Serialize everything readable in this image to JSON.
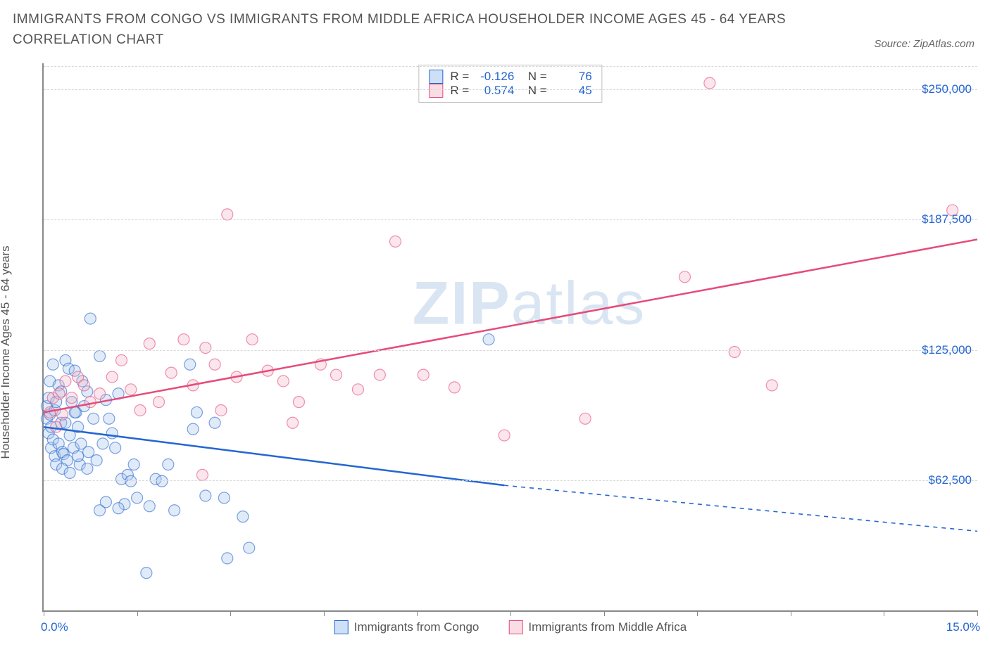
{
  "title": "IMMIGRANTS FROM CONGO VS IMMIGRANTS FROM MIDDLE AFRICA HOUSEHOLDER INCOME AGES 45 - 64 YEARS CORRELATION CHART",
  "source": "Source: ZipAtlas.com",
  "ylabel": "Householder Income Ages 45 - 64 years",
  "watermark_a": "ZIP",
  "watermark_b": "atlas",
  "chart": {
    "type": "scatter",
    "xlim": [
      0,
      15
    ],
    "ylim": [
      0,
      262500
    ],
    "xaxis_min_label": "0.0%",
    "xaxis_max_label": "15.0%",
    "xtick_positions": [
      0,
      1.5,
      3.0,
      4.5,
      6.0,
      7.5,
      9.0,
      10.5,
      12.0,
      13.5,
      15.0
    ],
    "ytick_positions": [
      62500,
      125000,
      187500,
      250000
    ],
    "ytick_labels": [
      "$62,500",
      "$125,000",
      "$187,500",
      "$250,000"
    ],
    "grid_color": "#d8d8d8",
    "background_color": "#ffffff",
    "marker_radius": 8,
    "marker_opacity": 0.35,
    "line_width": 2.5,
    "series": [
      {
        "name": "Immigrants from Congo",
        "color_fill": "#a8c6ec",
        "color_stroke": "#2466d1",
        "swatch_fill": "#cde0f7",
        "swatch_border": "#2466d1",
        "R": "-0.126",
        "N": "76",
        "regression": {
          "x1": 0,
          "y1": 88000,
          "x2": 7.4,
          "y2": 60000,
          "dash_to_x": 15,
          "dash_to_y": 38000
        },
        "points": [
          [
            0.05,
            98000
          ],
          [
            0.05,
            92000
          ],
          [
            0.08,
            102000
          ],
          [
            0.08,
            85000
          ],
          [
            0.1,
            110000
          ],
          [
            0.1,
            94000
          ],
          [
            0.12,
            88000
          ],
          [
            0.12,
            78000
          ],
          [
            0.15,
            118000
          ],
          [
            0.15,
            82000
          ],
          [
            0.18,
            96000
          ],
          [
            0.18,
            74000
          ],
          [
            0.2,
            100000
          ],
          [
            0.2,
            70000
          ],
          [
            0.24,
            108000
          ],
          [
            0.24,
            80000
          ],
          [
            0.28,
            105000
          ],
          [
            0.28,
            90000
          ],
          [
            0.3,
            76000
          ],
          [
            0.32,
            75000
          ],
          [
            0.35,
            120000
          ],
          [
            0.35,
            90000
          ],
          [
            0.38,
            72000
          ],
          [
            0.4,
            116000
          ],
          [
            0.42,
            84000
          ],
          [
            0.45,
            100000
          ],
          [
            0.48,
            78000
          ],
          [
            0.5,
            115000
          ],
          [
            0.52,
            95000
          ],
          [
            0.55,
            88000
          ],
          [
            0.58,
            70000
          ],
          [
            0.62,
            110000
          ],
          [
            0.65,
            98000
          ],
          [
            0.7,
            105000
          ],
          [
            0.72,
            76000
          ],
          [
            0.75,
            140000
          ],
          [
            0.8,
            92000
          ],
          [
            0.85,
            72000
          ],
          [
            0.9,
            122000
          ],
          [
            0.95,
            80000
          ],
          [
            1.0,
            101000
          ],
          [
            1.05,
            92000
          ],
          [
            1.1,
            85000
          ],
          [
            1.15,
            78000
          ],
          [
            1.2,
            104000
          ],
          [
            1.25,
            63000
          ],
          [
            1.3,
            51000
          ],
          [
            1.35,
            65000
          ],
          [
            1.4,
            62000
          ],
          [
            1.45,
            70000
          ],
          [
            1.5,
            54000
          ],
          [
            1.65,
            18000
          ],
          [
            1.7,
            50000
          ],
          [
            1.8,
            63000
          ],
          [
            1.9,
            62000
          ],
          [
            2.0,
            70000
          ],
          [
            2.1,
            48000
          ],
          [
            2.35,
            118000
          ],
          [
            2.4,
            87000
          ],
          [
            2.46,
            95000
          ],
          [
            2.6,
            55000
          ],
          [
            2.75,
            90000
          ],
          [
            2.9,
            54000
          ],
          [
            2.95,
            25000
          ],
          [
            3.2,
            45000
          ],
          [
            3.3,
            30000
          ],
          [
            7.15,
            130000
          ],
          [
            0.3,
            68000
          ],
          [
            0.42,
            66000
          ],
          [
            0.55,
            74000
          ],
          [
            0.6,
            80000
          ],
          [
            0.7,
            68000
          ],
          [
            0.9,
            48000
          ],
          [
            1.0,
            52000
          ],
          [
            1.2,
            49000
          ],
          [
            0.5,
            95000
          ]
        ]
      },
      {
        "name": "Immigrants from Middle Africa",
        "color_fill": "#f2b6c8",
        "color_stroke": "#e54b7a",
        "swatch_fill": "#fadce5",
        "swatch_border": "#e54b7a",
        "R": "0.574",
        "N": "45",
        "regression": {
          "x1": 0,
          "y1": 95000,
          "x2": 15,
          "y2": 178000
        },
        "points": [
          [
            0.1,
            95000
          ],
          [
            0.15,
            102000
          ],
          [
            0.2,
            88000
          ],
          [
            0.25,
            104000
          ],
          [
            0.3,
            94000
          ],
          [
            0.35,
            110000
          ],
          [
            0.45,
            102000
          ],
          [
            0.55,
            112000
          ],
          [
            0.65,
            108000
          ],
          [
            0.75,
            100000
          ],
          [
            0.9,
            104000
          ],
          [
            1.1,
            112000
          ],
          [
            1.25,
            120000
          ],
          [
            1.4,
            106000
          ],
          [
            1.55,
            96000
          ],
          [
            1.7,
            128000
          ],
          [
            1.85,
            100000
          ],
          [
            2.05,
            114000
          ],
          [
            2.25,
            130000
          ],
          [
            2.4,
            108000
          ],
          [
            2.6,
            126000
          ],
          [
            2.75,
            118000
          ],
          [
            2.85,
            96000
          ],
          [
            2.95,
            190000
          ],
          [
            3.1,
            112000
          ],
          [
            3.35,
            130000
          ],
          [
            3.6,
            115000
          ],
          [
            3.85,
            110000
          ],
          [
            4.1,
            100000
          ],
          [
            4.45,
            118000
          ],
          [
            4.7,
            113000
          ],
          [
            5.05,
            106000
          ],
          [
            5.4,
            113000
          ],
          [
            5.65,
            177000
          ],
          [
            6.1,
            113000
          ],
          [
            6.6,
            107000
          ],
          [
            7.4,
            84000
          ],
          [
            8.7,
            92000
          ],
          [
            10.3,
            160000
          ],
          [
            10.7,
            253000
          ],
          [
            11.1,
            124000
          ],
          [
            11.7,
            108000
          ],
          [
            2.55,
            65000
          ],
          [
            4.0,
            90000
          ],
          [
            14.6,
            192000
          ]
        ]
      }
    ],
    "bottom_legend": [
      {
        "label": "Immigrants from Congo",
        "fill": "#cde0f7",
        "border": "#2466d1"
      },
      {
        "label": "Immigrants from Middle Africa",
        "fill": "#fadce5",
        "border": "#e54b7a"
      }
    ]
  }
}
